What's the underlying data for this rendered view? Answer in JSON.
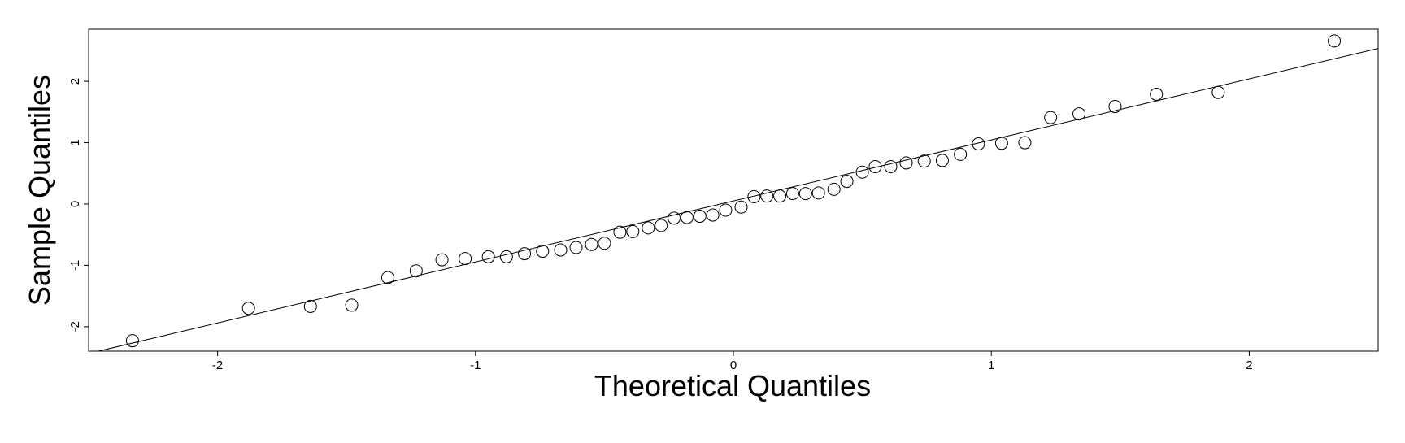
{
  "chart_data": {
    "type": "scatter",
    "title": "",
    "xlabel": "Theoretical Quantiles",
    "ylabel": "Sample Quantiles",
    "xlim": [
      -2.5,
      2.5
    ],
    "ylim": [
      -2.4,
      2.85
    ],
    "xticks": [
      -2,
      -1,
      0,
      1,
      2
    ],
    "yticks": [
      -2,
      -1,
      0,
      1,
      2
    ],
    "grid": false,
    "legend": "none",
    "marker": "open-circle",
    "colors": {
      "points": "#000000",
      "line": "#000000",
      "frame": "#000000",
      "background": "#ffffff"
    },
    "reference_line": {
      "type": "qqline",
      "intercept": 0.05,
      "slope": 0.995
    },
    "points": [
      {
        "x": -2.33,
        "y": -2.23
      },
      {
        "x": -1.88,
        "y": -1.7
      },
      {
        "x": -1.64,
        "y": -1.67
      },
      {
        "x": -1.48,
        "y": -1.65
      },
      {
        "x": -1.34,
        "y": -1.2
      },
      {
        "x": -1.23,
        "y": -1.09
      },
      {
        "x": -1.13,
        "y": -0.91
      },
      {
        "x": -1.04,
        "y": -0.89
      },
      {
        "x": -0.95,
        "y": -0.86
      },
      {
        "x": -0.88,
        "y": -0.86
      },
      {
        "x": -0.81,
        "y": -0.81
      },
      {
        "x": -0.74,
        "y": -0.77
      },
      {
        "x": -0.67,
        "y": -0.75
      },
      {
        "x": -0.61,
        "y": -0.71
      },
      {
        "x": -0.55,
        "y": -0.66
      },
      {
        "x": -0.5,
        "y": -0.64
      },
      {
        "x": -0.44,
        "y": -0.46
      },
      {
        "x": -0.39,
        "y": -0.45
      },
      {
        "x": -0.33,
        "y": -0.39
      },
      {
        "x": -0.28,
        "y": -0.35
      },
      {
        "x": -0.23,
        "y": -0.23
      },
      {
        "x": -0.18,
        "y": -0.22
      },
      {
        "x": -0.13,
        "y": -0.2
      },
      {
        "x": -0.08,
        "y": -0.18
      },
      {
        "x": -0.03,
        "y": -0.1
      },
      {
        "x": 0.03,
        "y": -0.05
      },
      {
        "x": 0.08,
        "y": 0.12
      },
      {
        "x": 0.13,
        "y": 0.13
      },
      {
        "x": 0.18,
        "y": 0.13
      },
      {
        "x": 0.23,
        "y": 0.17
      },
      {
        "x": 0.28,
        "y": 0.17
      },
      {
        "x": 0.33,
        "y": 0.18
      },
      {
        "x": 0.39,
        "y": 0.24
      },
      {
        "x": 0.44,
        "y": 0.37
      },
      {
        "x": 0.5,
        "y": 0.52
      },
      {
        "x": 0.55,
        "y": 0.61
      },
      {
        "x": 0.61,
        "y": 0.61
      },
      {
        "x": 0.67,
        "y": 0.67
      },
      {
        "x": 0.74,
        "y": 0.7
      },
      {
        "x": 0.81,
        "y": 0.71
      },
      {
        "x": 0.88,
        "y": 0.81
      },
      {
        "x": 0.95,
        "y": 0.98
      },
      {
        "x": 1.04,
        "y": 0.99
      },
      {
        "x": 1.13,
        "y": 1.0
      },
      {
        "x": 1.23,
        "y": 1.41
      },
      {
        "x": 1.34,
        "y": 1.47
      },
      {
        "x": 1.48,
        "y": 1.59
      },
      {
        "x": 1.64,
        "y": 1.79
      },
      {
        "x": 1.88,
        "y": 1.82
      },
      {
        "x": 2.33,
        "y": 2.66
      }
    ]
  }
}
